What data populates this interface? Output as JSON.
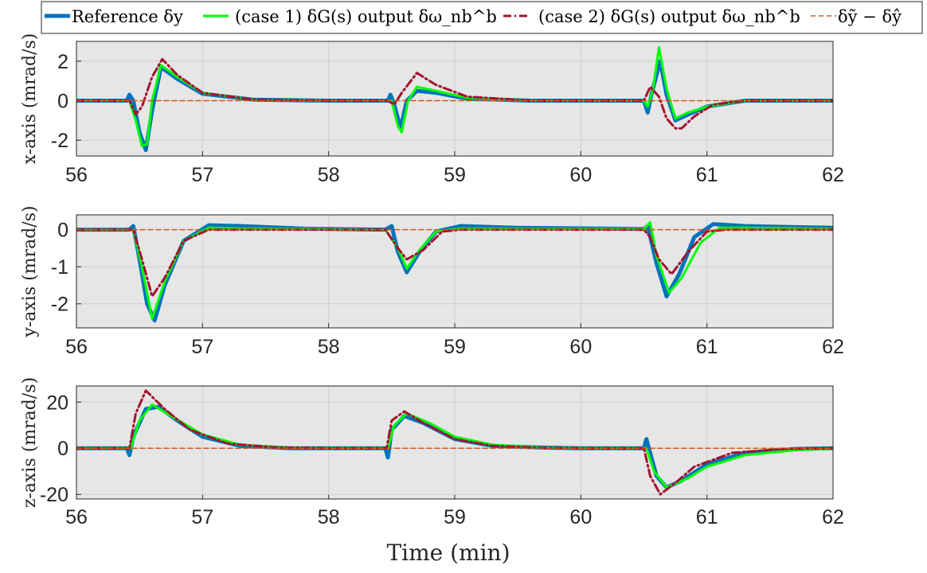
{
  "legend": {
    "entries": [
      {
        "label": "Reference δy",
        "color": "#0072BD",
        "dash": "solid",
        "width": 5
      },
      {
        "label": "(case 1) δG(s) output δω_nb^b",
        "color": "#00FF00",
        "dash": "solid",
        "width": 3
      },
      {
        "label": "(case 2) δG(s) output δω_nb^b",
        "color": "#A2142F",
        "dash": "dashdot",
        "width": 3
      },
      {
        "label": "δỹ − δŷ",
        "color": "#D95319",
        "dash": "dashed",
        "width": 1.5
      }
    ]
  },
  "chart_data": [
    {
      "type": "line",
      "ylabel": "x-axis (mrad/s)",
      "xlabel": "",
      "xlim": [
        56,
        62
      ],
      "ylim": [
        -2.8,
        3
      ],
      "xticks": [
        "56",
        "57",
        "58",
        "59",
        "60",
        "61",
        "62"
      ],
      "yticks": [
        "-2",
        "0",
        "2"
      ],
      "ytick_values": [
        -2,
        0,
        2
      ],
      "grid": true,
      "series": [
        {
          "name": "Reference δy",
          "x": [
            56,
            56.4,
            56.42,
            56.45,
            56.5,
            56.55,
            56.6,
            56.67,
            56.8,
            57,
            57.4,
            58,
            58.47,
            58.49,
            58.52,
            58.57,
            58.62,
            58.7,
            58.85,
            59.1,
            59.6,
            60.3,
            60.5,
            60.53,
            60.56,
            60.6,
            60.63,
            60.68,
            60.75,
            60.85,
            61,
            61.3,
            62
          ],
          "y": [
            0,
            0,
            0.3,
            0,
            -1.6,
            -2.5,
            -0.5,
            1.7,
            1.1,
            0.35,
            0.05,
            0,
            0,
            0.3,
            -0.2,
            -1.4,
            0,
            0.5,
            0.4,
            0.1,
            0,
            0,
            0,
            -0.6,
            0.3,
            1.3,
            2.0,
            0.3,
            -1.0,
            -0.7,
            -0.3,
            0,
            0
          ]
        },
        {
          "name": "(case 1) δG(s) output δω_nb^b",
          "x": [
            56,
            56.42,
            56.47,
            56.52,
            56.56,
            56.6,
            56.67,
            56.8,
            57,
            57.4,
            58,
            58.5,
            58.55,
            58.58,
            58.63,
            58.7,
            58.85,
            59.1,
            59.6,
            60.5,
            60.53,
            60.57,
            60.62,
            60.68,
            60.75,
            60.85,
            61,
            61.3,
            62
          ],
          "y": [
            0,
            0,
            -1.0,
            -2.3,
            -2.2,
            0.0,
            1.8,
            1.2,
            0.4,
            0.05,
            0,
            0,
            -1.3,
            -1.6,
            0.0,
            0.7,
            0.5,
            0.15,
            0,
            0,
            -0.3,
            0.5,
            2.7,
            0.6,
            -0.9,
            -0.6,
            -0.3,
            0,
            0
          ]
        },
        {
          "name": "(case 2) δG(s) output δω_nb^b",
          "x": [
            56,
            56.42,
            56.47,
            56.52,
            56.6,
            56.68,
            56.8,
            57,
            57.4,
            58,
            58.47,
            58.52,
            58.58,
            58.7,
            58.85,
            59.1,
            59.6,
            60.5,
            60.55,
            60.62,
            60.68,
            60.75,
            60.8,
            60.9,
            61.05,
            61.3,
            62
          ],
          "y": [
            0,
            0,
            -0.7,
            -0.3,
            1.2,
            2.1,
            1.3,
            0.4,
            0.05,
            0,
            0,
            -0.2,
            0.4,
            1.4,
            0.8,
            0.2,
            0,
            0,
            0.7,
            0.2,
            -0.9,
            -1.4,
            -1.4,
            -0.8,
            -0.2,
            0,
            0
          ]
        },
        {
          "name": "δỹ − δŷ",
          "x": [
            56,
            62
          ],
          "y": [
            0,
            0
          ]
        }
      ]
    },
    {
      "type": "line",
      "ylabel": "y-axis (mrad/s)",
      "xlabel": "",
      "xlim": [
        56,
        62
      ],
      "ylim": [
        -2.65,
        0.4
      ],
      "xticks": [
        "56",
        "57",
        "58",
        "59",
        "60",
        "61",
        "62"
      ],
      "yticks": [
        "0",
        "-1",
        "-2"
      ],
      "ytick_values": [
        0,
        -1,
        -2
      ],
      "grid": true,
      "series": [
        {
          "name": "Reference δy",
          "x": [
            56,
            56.42,
            56.45,
            56.5,
            56.56,
            56.62,
            56.7,
            56.85,
            57.05,
            57.3,
            57.8,
            58.45,
            58.5,
            58.55,
            58.62,
            58.72,
            58.85,
            59.05,
            59.5,
            60.5,
            60.53,
            60.6,
            60.68,
            60.78,
            60.9,
            61.05,
            61.3,
            62
          ],
          "y": [
            0,
            0,
            0.1,
            -0.8,
            -2.0,
            -2.45,
            -1.5,
            -0.3,
            0.12,
            0.1,
            0.03,
            0,
            0.1,
            -0.6,
            -1.15,
            -0.6,
            -0.05,
            0.1,
            0.05,
            0.02,
            0.1,
            -0.9,
            -1.8,
            -1.2,
            -0.2,
            0.15,
            0.1,
            0.05
          ]
        },
        {
          "name": "(case 1) δG(s) output δω_nb^b",
          "x": [
            56,
            56.45,
            56.52,
            56.6,
            56.7,
            56.85,
            57.05,
            57.3,
            58.45,
            58.55,
            58.62,
            58.72,
            58.85,
            59.05,
            59.5,
            60.5,
            60.55,
            60.6,
            60.7,
            60.8,
            60.95,
            61.1,
            61.3,
            62
          ],
          "y": [
            0,
            0,
            -1.0,
            -2.4,
            -1.4,
            -0.3,
            0.05,
            0.03,
            0,
            -0.5,
            -1.05,
            -0.55,
            -0.05,
            0.03,
            0.02,
            0.02,
            0.2,
            -0.7,
            -1.7,
            -1.3,
            -0.35,
            0.05,
            0.05,
            0.02
          ]
        },
        {
          "name": "(case 2) δG(s) output δω_nb^b",
          "x": [
            56,
            56.45,
            56.52,
            56.6,
            56.7,
            56.85,
            57.05,
            58.45,
            58.55,
            58.62,
            58.75,
            58.9,
            59.05,
            60.5,
            60.55,
            60.62,
            60.72,
            60.85,
            61.0,
            61.15,
            62
          ],
          "y": [
            0,
            0,
            -0.8,
            -1.8,
            -1.3,
            -0.3,
            0,
            0,
            -0.5,
            -0.8,
            -0.55,
            -0.05,
            0,
            0,
            -0.2,
            -0.8,
            -1.2,
            -0.6,
            -0.05,
            0,
            0
          ]
        },
        {
          "name": "δỹ − δŷ",
          "x": [
            56,
            62
          ],
          "y": [
            0,
            0
          ]
        }
      ]
    },
    {
      "type": "line",
      "ylabel": "z-axis (mrad/s)",
      "xlabel": "Time (min)",
      "xlim": [
        56,
        62
      ],
      "ylim": [
        -22,
        27
      ],
      "xticks": [
        "56",
        "57",
        "58",
        "59",
        "60",
        "61",
        "62"
      ],
      "yticks": [
        "20",
        "0",
        "-20"
      ],
      "ytick_values": [
        20,
        0,
        -20
      ],
      "grid": true,
      "series": [
        {
          "name": "Reference δy",
          "x": [
            56,
            56.4,
            56.42,
            56.45,
            56.55,
            56.65,
            56.8,
            57.0,
            57.3,
            57.7,
            58.0,
            58.45,
            58.47,
            58.5,
            58.6,
            58.75,
            59.0,
            59.3,
            59.7,
            60.0,
            60.5,
            60.52,
            60.55,
            60.6,
            60.68,
            60.8,
            61.0,
            61.3,
            61.7,
            62
          ],
          "y": [
            0,
            0,
            -3,
            5,
            17,
            18,
            12,
            5,
            1,
            0,
            0,
            0,
            -4,
            8,
            14,
            11,
            4,
            1,
            0.3,
            0,
            0,
            4,
            -2,
            -12,
            -17,
            -14,
            -7,
            -2,
            -0.3,
            0
          ]
        },
        {
          "name": "(case 1) δG(s) output δω_nb^b",
          "x": [
            56,
            56.43,
            56.5,
            56.6,
            56.75,
            57.0,
            57.3,
            57.7,
            58.0,
            58.47,
            58.52,
            58.62,
            58.8,
            59.0,
            59.3,
            59.7,
            60.0,
            60.52,
            60.58,
            60.68,
            60.85,
            61.0,
            61.3,
            61.7,
            62
          ],
          "y": [
            0,
            0,
            12,
            19,
            14,
            6,
            1.5,
            0.2,
            0,
            0,
            10,
            15,
            11,
            5,
            1.5,
            0.3,
            0,
            0,
            -10,
            -17,
            -13,
            -8,
            -3,
            -0.8,
            -0.2
          ]
        },
        {
          "name": "(case 2) δG(s) output δω_nb^b",
          "x": [
            56,
            56.42,
            56.47,
            56.55,
            56.7,
            56.9,
            57.2,
            57.6,
            58.0,
            58.46,
            58.5,
            58.6,
            58.75,
            59.0,
            59.3,
            59.7,
            60.0,
            60.5,
            60.55,
            60.63,
            60.75,
            60.9,
            61.2,
            61.6,
            62
          ],
          "y": [
            0,
            0,
            15,
            25,
            17,
            8,
            2,
            0.3,
            0,
            0,
            12,
            16,
            11,
            4,
            1,
            0.2,
            0,
            0,
            -12,
            -20,
            -15,
            -8,
            -2,
            -0.3,
            0
          ]
        },
        {
          "name": "δỹ − δŷ",
          "x": [
            56,
            62
          ],
          "y": [
            0,
            0
          ]
        }
      ]
    }
  ]
}
